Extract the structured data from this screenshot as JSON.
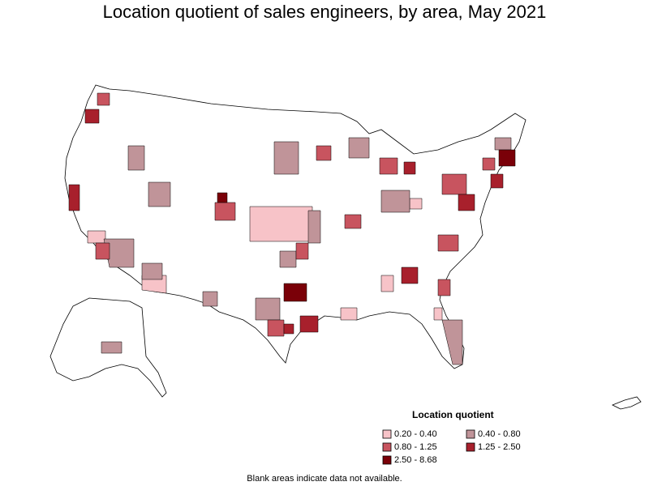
{
  "title": "Location quotient of sales engineers, by area, May 2021",
  "legend": {
    "title": "Location quotient",
    "items": [
      {
        "label": "0.20 - 0.40",
        "color": "#f7c3c8"
      },
      {
        "label": "0.40 - 0.80",
        "color": "#c09499"
      },
      {
        "label": "0.80 - 1.25",
        "color": "#c8545f"
      },
      {
        "label": "1.25 - 2.50",
        "color": "#a8202c"
      },
      {
        "label": "2.50 - 8.68",
        "color": "#7a0008"
      }
    ]
  },
  "footnote": "Blank areas indicate data not available.",
  "colors": {
    "border": "#000000",
    "blank": "#ffffff"
  }
}
